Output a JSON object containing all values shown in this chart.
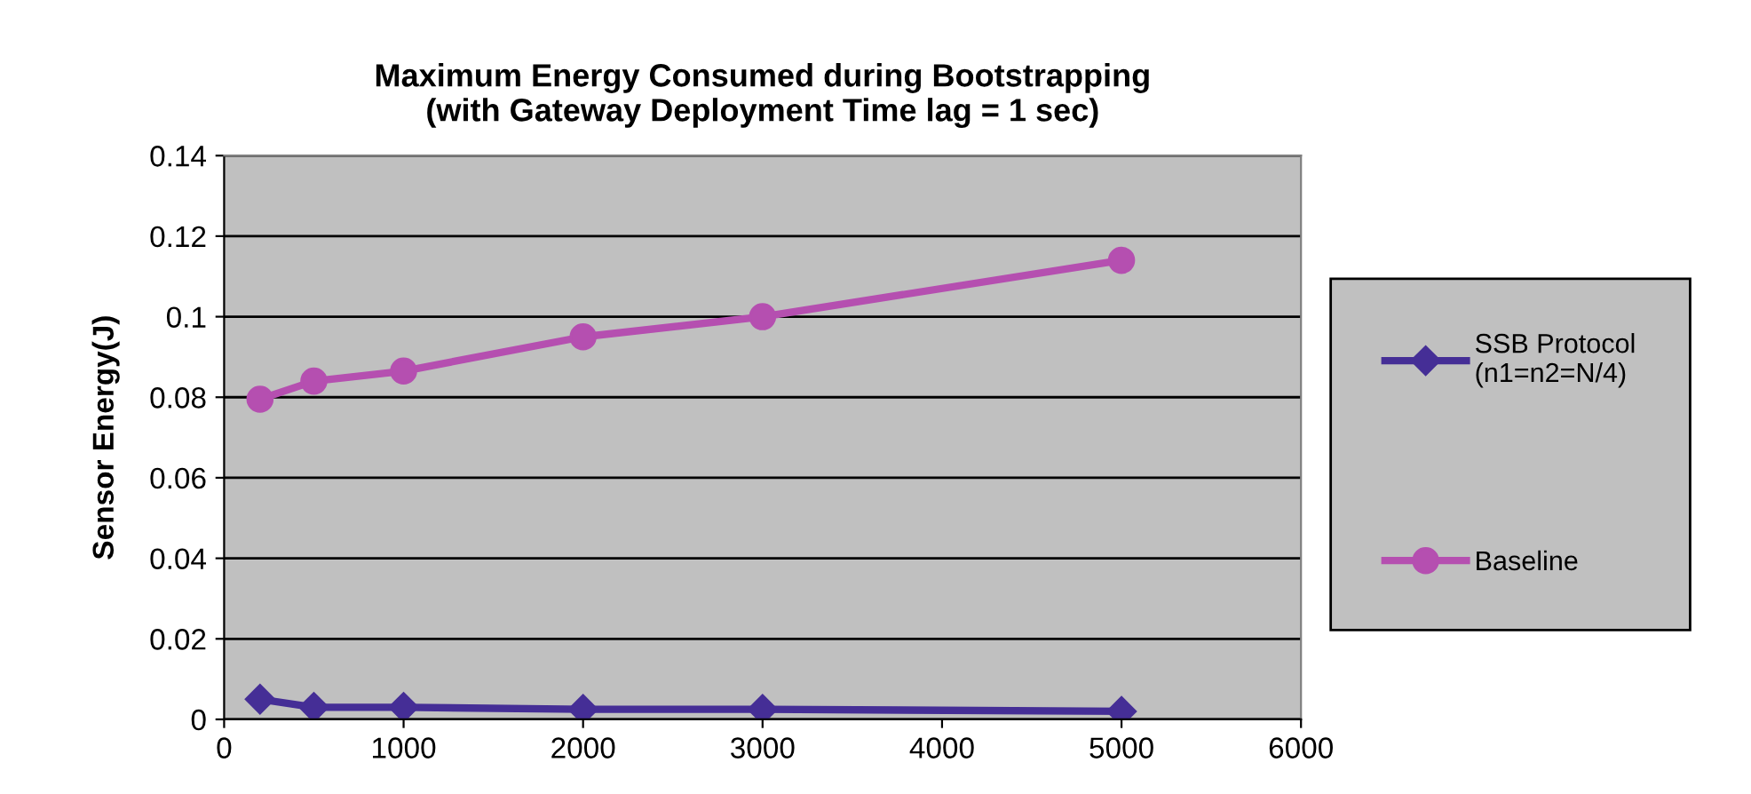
{
  "chart_data": {
    "type": "line",
    "title": "Maximum Energy Consumed during Bootstrapping\n(with Gateway Deployment Time lag = 1 sec)",
    "ylabel": "Sensor Energy(J)",
    "x": [
      200,
      500,
      1000,
      2000,
      3000,
      5000
    ],
    "series": [
      {
        "name": "SSB Protocol\n(n1=n2=N/4)",
        "color": "#452e96",
        "marker": "diamond",
        "values": [
          0.005,
          0.003,
          0.003,
          0.0025,
          0.0025,
          0.002
        ]
      },
      {
        "name": "Baseline",
        "color": "#b54fb0",
        "marker": "circle",
        "values": [
          0.0795,
          0.084,
          0.0865,
          0.095,
          0.1,
          0.114
        ]
      }
    ],
    "xlim": [
      0,
      6000
    ],
    "xticks": [
      0,
      1000,
      2000,
      3000,
      4000,
      5000,
      6000
    ],
    "ylim": [
      0,
      0.14
    ],
    "yticks": [
      0,
      0.02,
      0.04,
      0.06,
      0.08,
      0.1,
      0.12,
      0.14
    ],
    "grid": "y",
    "legend": "right",
    "line_style": "solid"
  }
}
